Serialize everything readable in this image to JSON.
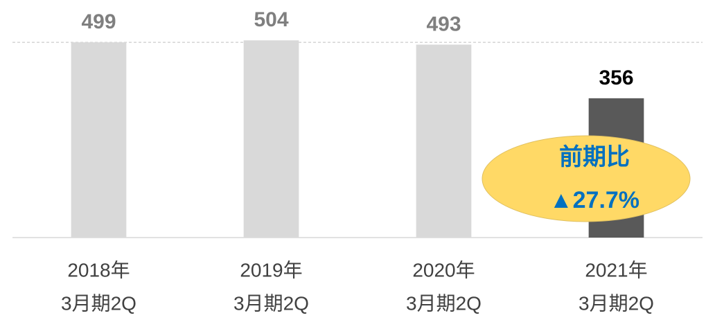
{
  "chart_data": {
    "type": "bar",
    "categories": [
      [
        "2018年",
        "3月期2Q"
      ],
      [
        "2019年",
        "3月期2Q"
      ],
      [
        "2020年",
        "3月期2Q"
      ],
      [
        "2021年",
        "3月期2Q"
      ]
    ],
    "values": [
      499,
      504,
      493,
      356
    ],
    "colors": [
      "#d9d9d9",
      "#d9d9d9",
      "#d9d9d9",
      "#595959"
    ],
    "label_colors": [
      "#7f7f7f",
      "#7f7f7f",
      "#7f7f7f",
      "#000000"
    ],
    "ylim": [
      0,
      600
    ],
    "annotation": {
      "lines": [
        "前期比",
        "▲27.7%"
      ],
      "color": "#0070c0",
      "fill": "#ffd966"
    }
  }
}
